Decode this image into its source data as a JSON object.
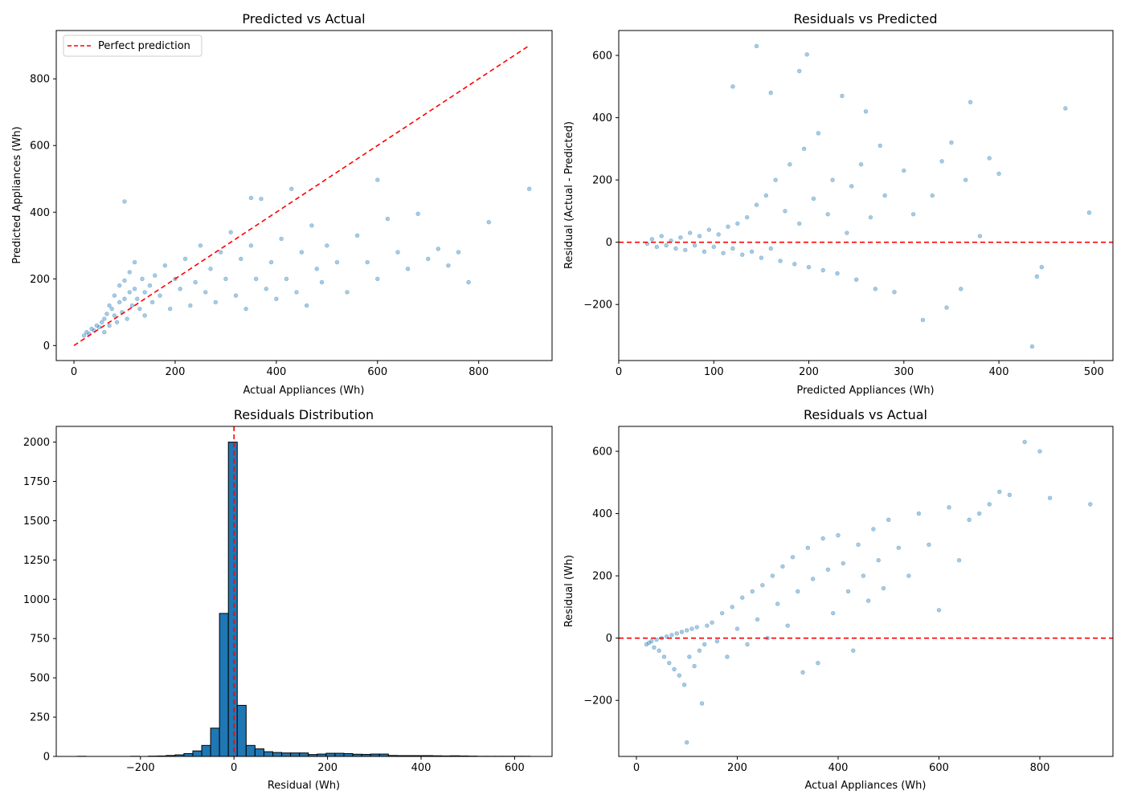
{
  "chart_data": [
    {
      "type": "scatter",
      "title": "Predicted vs Actual",
      "xlabel": "Actual Appliances (Wh)",
      "ylabel": "Predicted Appliances (Wh)",
      "xlim": [
        -35,
        945
      ],
      "ylim": [
        -45,
        945
      ],
      "xticks": [
        0,
        200,
        400,
        600,
        800
      ],
      "yticks": [
        0,
        200,
        400,
        600,
        800
      ],
      "color": "#1f77b4",
      "reference_line": {
        "name": "Perfect prediction",
        "x": [
          0,
          900
        ],
        "y": [
          0,
          900
        ],
        "color": "#ff0000",
        "style": "dashed"
      },
      "legend": {
        "position": "upper-left",
        "entries": [
          "Perfect prediction"
        ]
      },
      "grid": false,
      "points": [
        [
          20,
          30
        ],
        [
          25,
          40
        ],
        [
          30,
          35
        ],
        [
          35,
          50
        ],
        [
          40,
          45
        ],
        [
          45,
          60
        ],
        [
          50,
          55
        ],
        [
          55,
          70
        ],
        [
          60,
          40
        ],
        [
          60,
          80
        ],
        [
          65,
          95
        ],
        [
          70,
          60
        ],
        [
          70,
          120
        ],
        [
          75,
          110
        ],
        [
          80,
          90
        ],
        [
          80,
          150
        ],
        [
          85,
          70
        ],
        [
          90,
          130
        ],
        [
          90,
          180
        ],
        [
          95,
          100
        ],
        [
          100,
          140
        ],
        [
          100,
          195
        ],
        [
          105,
          80
        ],
        [
          110,
          160
        ],
        [
          110,
          220
        ],
        [
          115,
          120
        ],
        [
          120,
          170
        ],
        [
          120,
          250
        ],
        [
          125,
          140
        ],
        [
          130,
          110
        ],
        [
          135,
          200
        ],
        [
          140,
          160
        ],
        [
          140,
          90
        ],
        [
          150,
          180
        ],
        [
          155,
          130
        ],
        [
          160,
          210
        ],
        [
          170,
          150
        ],
        [
          180,
          240
        ],
        [
          190,
          110
        ],
        [
          200,
          200
        ],
        [
          210,
          170
        ],
        [
          220,
          260
        ],
        [
          230,
          120
        ],
        [
          240,
          190
        ],
        [
          250,
          300
        ],
        [
          260,
          160
        ],
        [
          270,
          230
        ],
        [
          280,
          130
        ],
        [
          290,
          280
        ],
        [
          300,
          200
        ],
        [
          310,
          340
        ],
        [
          320,
          150
        ],
        [
          330,
          260
        ],
        [
          340,
          110
        ],
        [
          350,
          300
        ],
        [
          360,
          200
        ],
        [
          370,
          440
        ],
        [
          380,
          170
        ],
        [
          390,
          250
        ],
        [
          400,
          140
        ],
        [
          410,
          320
        ],
        [
          420,
          200
        ],
        [
          430,
          470
        ],
        [
          440,
          160
        ],
        [
          450,
          280
        ],
        [
          460,
          120
        ],
        [
          470,
          360
        ],
        [
          480,
          230
        ],
        [
          490,
          190
        ],
        [
          500,
          300
        ],
        [
          520,
          250
        ],
        [
          540,
          160
        ],
        [
          560,
          330
        ],
        [
          580,
          250
        ],
        [
          600,
          200
        ],
        [
          620,
          380
        ],
        [
          640,
          280
        ],
        [
          660,
          230
        ],
        [
          680,
          395
        ],
        [
          700,
          260
        ],
        [
          720,
          290
        ],
        [
          740,
          240
        ],
        [
          760,
          280
        ],
        [
          780,
          190
        ],
        [
          820,
          370
        ],
        [
          900,
          470
        ],
        [
          100,
          432
        ],
        [
          350,
          443
        ],
        [
          600,
          497
        ]
      ]
    },
    {
      "type": "scatter",
      "title": "Residuals vs Predicted",
      "xlabel": "Predicted Appliances (Wh)",
      "ylabel": "Residual (Actual - Predicted)",
      "xlim": [
        0,
        520
      ],
      "ylim": [
        -380,
        680
      ],
      "xticks": [
        0,
        100,
        200,
        300,
        400,
        500
      ],
      "yticks": [
        -200,
        0,
        200,
        400,
        600
      ],
      "color": "#1f77b4",
      "reference_line": {
        "y": 0,
        "color": "#ff0000",
        "style": "dashed"
      },
      "grid": false,
      "points": [
        [
          30,
          -5
        ],
        [
          35,
          10
        ],
        [
          40,
          -15
        ],
        [
          45,
          20
        ],
        [
          50,
          -10
        ],
        [
          55,
          5
        ],
        [
          60,
          -20
        ],
        [
          65,
          15
        ],
        [
          70,
          -25
        ],
        [
          75,
          30
        ],
        [
          80,
          -10
        ],
        [
          85,
          20
        ],
        [
          90,
          -30
        ],
        [
          95,
          40
        ],
        [
          100,
          -15
        ],
        [
          105,
          25
        ],
        [
          110,
          -35
        ],
        [
          115,
          50
        ],
        [
          120,
          -20
        ],
        [
          125,
          60
        ],
        [
          130,
          -40
        ],
        [
          135,
          80
        ],
        [
          140,
          -30
        ],
        [
          145,
          120
        ],
        [
          150,
          -50
        ],
        [
          155,
          150
        ],
        [
          160,
          -20
        ],
        [
          165,
          200
        ],
        [
          170,
          -60
        ],
        [
          175,
          100
        ],
        [
          180,
          250
        ],
        [
          185,
          -70
        ],
        [
          190,
          60
        ],
        [
          195,
          300
        ],
        [
          200,
          -80
        ],
        [
          205,
          140
        ],
        [
          210,
          350
        ],
        [
          215,
          -90
        ],
        [
          220,
          90
        ],
        [
          225,
          200
        ],
        [
          230,
          -100
        ],
        [
          235,
          470
        ],
        [
          240,
          30
        ],
        [
          245,
          180
        ],
        [
          250,
          -120
        ],
        [
          255,
          250
        ],
        [
          260,
          420
        ],
        [
          265,
          80
        ],
        [
          270,
          -150
        ],
        [
          275,
          310
        ],
        [
          280,
          150
        ],
        [
          290,
          -160
        ],
        [
          300,
          230
        ],
        [
          310,
          90
        ],
        [
          320,
          -250
        ],
        [
          330,
          150
        ],
        [
          340,
          260
        ],
        [
          345,
          -210
        ],
        [
          350,
          320
        ],
        [
          360,
          -150
        ],
        [
          365,
          200
        ],
        [
          370,
          450
        ],
        [
          380,
          20
        ],
        [
          390,
          270
        ],
        [
          400,
          220
        ],
        [
          435,
          -335
        ],
        [
          440,
          -110
        ],
        [
          445,
          -80
        ],
        [
          470,
          430
        ],
        [
          495,
          95
        ],
        [
          145,
          630
        ],
        [
          198,
          603
        ],
        [
          190,
          550
        ],
        [
          120,
          500
        ],
        [
          160,
          480
        ]
      ]
    },
    {
      "type": "bar",
      "title": "Residuals Distribution",
      "xlabel": "Residual (Wh)",
      "ylabel": "",
      "xlim": [
        -380,
        680
      ],
      "ylim": [
        0,
        2100
      ],
      "xticks": [
        -200,
        0,
        200,
        400,
        600
      ],
      "yticks": [
        0,
        250,
        500,
        750,
        1000,
        1250,
        1500,
        1750,
        2000
      ],
      "color": "#1f77b4",
      "edge_color": "#000000",
      "reference_line": {
        "x": 0,
        "color": "#ff0000",
        "style": "dashed"
      },
      "bin_width": 19,
      "bin_starts": [
        -335,
        -316,
        -297,
        -278,
        -259,
        -240,
        -221,
        -202,
        -183,
        -164,
        -145,
        -126,
        -107,
        -88,
        -69,
        -50,
        -31,
        -12,
        7,
        26,
        45,
        64,
        83,
        102,
        121,
        140,
        159,
        178,
        197,
        216,
        235,
        254,
        273,
        292,
        311,
        330,
        349,
        368,
        387,
        406,
        425,
        444,
        463,
        482,
        501,
        520,
        539,
        558,
        577,
        596,
        615
      ],
      "values": [
        1,
        0,
        0,
        0,
        0,
        0,
        1,
        0,
        2,
        3,
        6,
        10,
        18,
        35,
        70,
        180,
        910,
        2000,
        325,
        70,
        48,
        30,
        25,
        22,
        22,
        22,
        12,
        15,
        20,
        20,
        18,
        14,
        13,
        15,
        15,
        6,
        5,
        5,
        5,
        5,
        4,
        3,
        4,
        3,
        2,
        1,
        1,
        1,
        1,
        1,
        1
      ]
    },
    {
      "type": "scatter",
      "title": "Residuals vs Actual",
      "xlabel": "Actual Appliances (Wh)",
      "ylabel": "Residual (Wh)",
      "xlim": [
        -35,
        945
      ],
      "ylim": [
        -380,
        680
      ],
      "xticks": [
        0,
        200,
        400,
        600,
        800
      ],
      "yticks": [
        -200,
        0,
        200,
        400,
        600
      ],
      "color": "#1f77b4",
      "reference_line": {
        "y": 0,
        "color": "#ff0000",
        "style": "dashed"
      },
      "grid": false,
      "points": [
        [
          20,
          -20
        ],
        [
          25,
          -15
        ],
        [
          30,
          -10
        ],
        [
          35,
          -30
        ],
        [
          40,
          -5
        ],
        [
          45,
          -40
        ],
        [
          50,
          0
        ],
        [
          55,
          -60
        ],
        [
          60,
          5
        ],
        [
          65,
          -80
        ],
        [
          70,
          10
        ],
        [
          75,
          -100
        ],
        [
          80,
          15
        ],
        [
          85,
          -120
        ],
        [
          90,
          20
        ],
        [
          95,
          -150
        ],
        [
          100,
          25
        ],
        [
          100,
          -335
        ],
        [
          105,
          -60
        ],
        [
          110,
          30
        ],
        [
          115,
          -90
        ],
        [
          120,
          35
        ],
        [
          125,
          -40
        ],
        [
          130,
          -210
        ],
        [
          135,
          -20
        ],
        [
          140,
          40
        ],
        [
          150,
          50
        ],
        [
          160,
          -10
        ],
        [
          170,
          80
        ],
        [
          180,
          -60
        ],
        [
          190,
          100
        ],
        [
          200,
          30
        ],
        [
          210,
          130
        ],
        [
          220,
          -20
        ],
        [
          230,
          150
        ],
        [
          240,
          60
        ],
        [
          250,
          170
        ],
        [
          260,
          0
        ],
        [
          270,
          200
        ],
        [
          280,
          110
        ],
        [
          290,
          230
        ],
        [
          300,
          40
        ],
        [
          310,
          260
        ],
        [
          320,
          150
        ],
        [
          330,
          -110
        ],
        [
          340,
          290
        ],
        [
          350,
          190
        ],
        [
          360,
          -80
        ],
        [
          370,
          320
        ],
        [
          380,
          220
        ],
        [
          390,
          80
        ],
        [
          400,
          330
        ],
        [
          410,
          240
        ],
        [
          420,
          150
        ],
        [
          430,
          -40
        ],
        [
          440,
          300
        ],
        [
          450,
          200
        ],
        [
          460,
          120
        ],
        [
          470,
          350
        ],
        [
          480,
          250
        ],
        [
          490,
          160
        ],
        [
          500,
          380
        ],
        [
          520,
          290
        ],
        [
          540,
          200
        ],
        [
          560,
          400
        ],
        [
          580,
          300
        ],
        [
          600,
          90
        ],
        [
          620,
          420
        ],
        [
          640,
          250
        ],
        [
          660,
          380
        ],
        [
          680,
          400
        ],
        [
          700,
          430
        ],
        [
          720,
          470
        ],
        [
          740,
          460
        ],
        [
          770,
          630
        ],
        [
          800,
          600
        ],
        [
          820,
          450
        ],
        [
          900,
          430
        ]
      ]
    }
  ]
}
